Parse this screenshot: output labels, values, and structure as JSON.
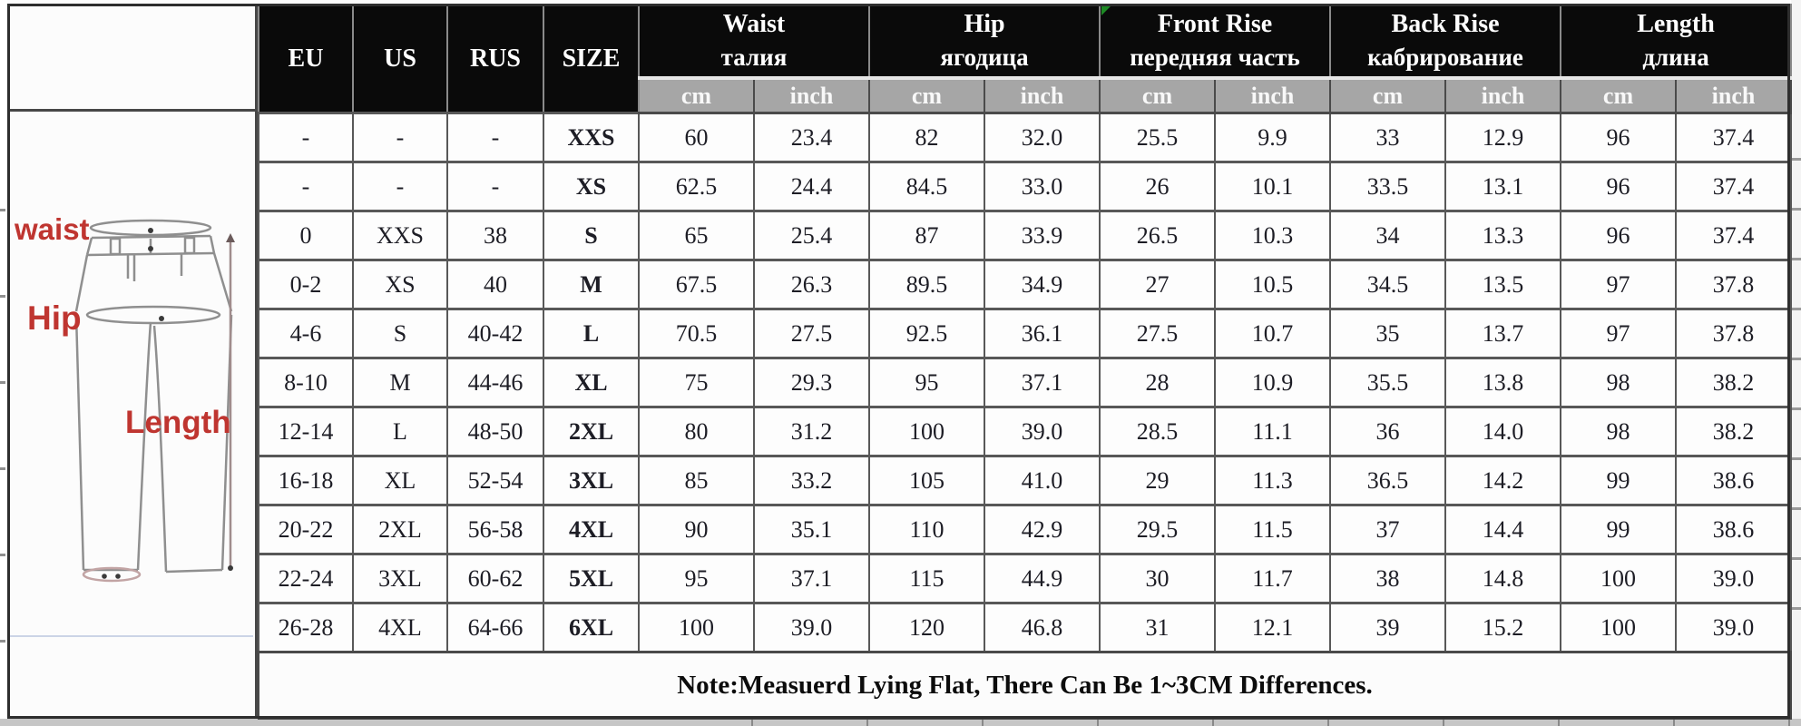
{
  "table": {
    "id_columns": [
      {
        "label": "EU"
      },
      {
        "label": "US"
      },
      {
        "label": "RUS"
      },
      {
        "label": "SIZE"
      }
    ],
    "groups": [
      {
        "en": "Waist",
        "ru": "талия"
      },
      {
        "en": "Hip",
        "ru": "ягодица"
      },
      {
        "en": "Front Rise",
        "ru": "передняя часть"
      },
      {
        "en": "Back Rise",
        "ru": "кабрирование"
      },
      {
        "en": "Length",
        "ru": "длина"
      }
    ],
    "units": {
      "cm": "cm",
      "inch": "inch"
    },
    "rows": [
      [
        "-",
        "-",
        "-",
        "XXS",
        "60",
        "23.4",
        "82",
        "32.0",
        "25.5",
        "9.9",
        "33",
        "12.9",
        "96",
        "37.4"
      ],
      [
        "-",
        "-",
        "-",
        "XS",
        "62.5",
        "24.4",
        "84.5",
        "33.0",
        "26",
        "10.1",
        "33.5",
        "13.1",
        "96",
        "37.4"
      ],
      [
        "0",
        "XXS",
        "38",
        "S",
        "65",
        "25.4",
        "87",
        "33.9",
        "26.5",
        "10.3",
        "34",
        "13.3",
        "96",
        "37.4"
      ],
      [
        "0-2",
        "XS",
        "40",
        "M",
        "67.5",
        "26.3",
        "89.5",
        "34.9",
        "27",
        "10.5",
        "34.5",
        "13.5",
        "97",
        "37.8"
      ],
      [
        "4-6",
        "S",
        "40-42",
        "L",
        "70.5",
        "27.5",
        "92.5",
        "36.1",
        "27.5",
        "10.7",
        "35",
        "13.7",
        "97",
        "37.8"
      ],
      [
        "8-10",
        "M",
        "44-46",
        "XL",
        "75",
        "29.3",
        "95",
        "37.1",
        "28",
        "10.9",
        "35.5",
        "13.8",
        "98",
        "38.2"
      ],
      [
        "12-14",
        "L",
        "48-50",
        "2XL",
        "80",
        "31.2",
        "100",
        "39.0",
        "28.5",
        "11.1",
        "36",
        "14.0",
        "98",
        "38.2"
      ],
      [
        "16-18",
        "XL",
        "52-54",
        "3XL",
        "85",
        "33.2",
        "105",
        "41.0",
        "29",
        "11.3",
        "36.5",
        "14.2",
        "99",
        "38.6"
      ],
      [
        "20-22",
        "2XL",
        "56-58",
        "4XL",
        "90",
        "35.1",
        "110",
        "42.9",
        "29.5",
        "11.5",
        "37",
        "14.4",
        "99",
        "38.6"
      ],
      [
        "22-24",
        "3XL",
        "60-62",
        "5XL",
        "95",
        "37.1",
        "115",
        "44.9",
        "30",
        "11.7",
        "38",
        "14.8",
        "100",
        "39.0"
      ],
      [
        "26-28",
        "4XL",
        "64-66",
        "6XL",
        "100",
        "39.0",
        "120",
        "46.8",
        "31",
        "12.1",
        "39",
        "15.2",
        "100",
        "39.0"
      ]
    ],
    "note": "Note:Measuerd Lying Flat, There Can Be 1~3CM Differences."
  },
  "diagram": {
    "labels": {
      "waist": "waist",
      "hip": "Hip",
      "length": "Length"
    },
    "label_color": "#bf3530"
  },
  "colors": {
    "header_bg": "#0a0a0a",
    "unit_row_bg": "#a6a6a6",
    "border": "#585858",
    "comment_marker_green": "#1d8a24",
    "red_label": "#bf3530"
  }
}
